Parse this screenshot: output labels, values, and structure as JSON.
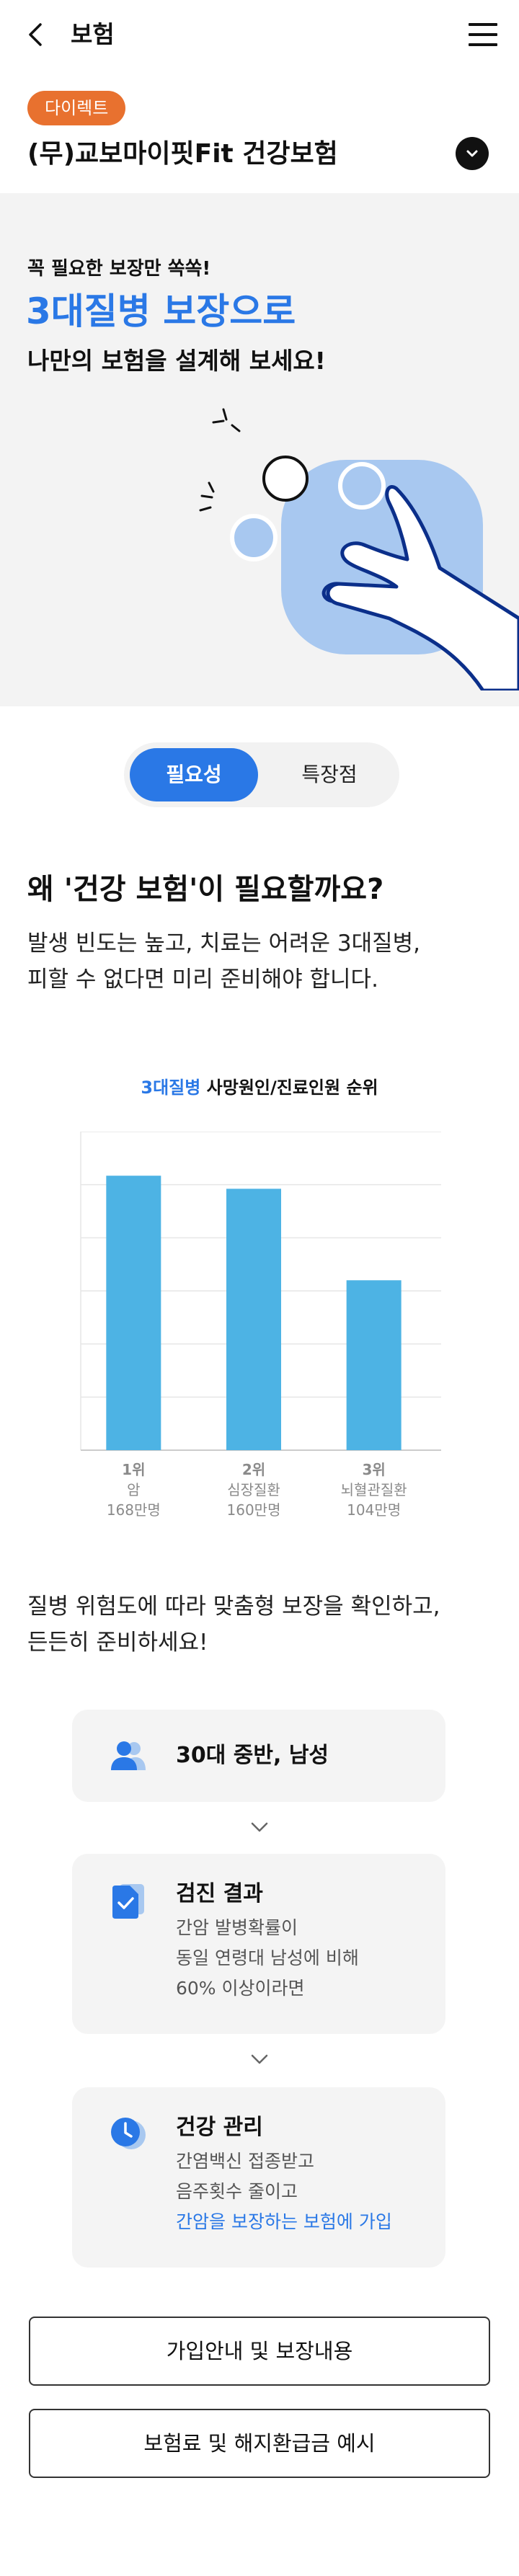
{
  "header": {
    "title": "보험"
  },
  "product": {
    "badge": "다이렉트",
    "name": "(무)교보마이핏Fit 건강보험"
  },
  "hero": {
    "eyebrow": "꼭 필요한 보장만 쏙쏙!",
    "headline": "3대질병 보장으로",
    "sub": "나만의 보험을 설계해 보세요!"
  },
  "tabs": [
    {
      "label": "필요성",
      "active": true
    },
    {
      "label": "특장점",
      "active": false
    }
  ],
  "need": {
    "title": "왜 '건강 보험'이 필요할까요?",
    "desc_line1": "발생 빈도는 높고, 치료는 어려운 3대질병,",
    "desc_line2": "피할 수 없다면 미리 준비해야 합니다."
  },
  "chart_caption": {
    "accent": "3대질병",
    "rest": " 사망원인/진료인원 순위"
  },
  "chart_data": {
    "type": "bar",
    "title": "3대질병 사망원인/진료인원 순위",
    "categories": [
      "암",
      "심장질환",
      "뇌혈관질환"
    ],
    "ranks": [
      "1위",
      "2위",
      "3위"
    ],
    "counts": [
      "168만명",
      "160만명",
      "104만명"
    ],
    "values": [
      168,
      160,
      104
    ],
    "ylim": [
      0,
      195
    ],
    "grid": true,
    "bar_color": "#4db3e4"
  },
  "steps": {
    "desc_line1": "질병 위험도에 따라 맞춤형 보장을 확인하고,",
    "desc_line2": "든든히 준비하세요!",
    "cards": [
      {
        "icon": "person-icon",
        "title": "30대 중반, 남성",
        "lines": []
      },
      {
        "icon": "document-check-icon",
        "title": "검진 결과",
        "lines": [
          "간암 발병확률이",
          "동일 연령대 남성에 비해",
          "60% 이상이라면"
        ]
      },
      {
        "icon": "clock-icon",
        "title": "건강 관리",
        "lines": [
          "간염백신 접종받고",
          "음주횟수 줄이고"
        ],
        "link": "간암을 보장하는 보험에 가입"
      }
    ]
  },
  "buttons": {
    "guide": "가입안내 및 보장내용",
    "refund": "보험료 및 해지환급금 예시"
  },
  "colors": {
    "accent": "#2a78e6",
    "badge": "#e8712f",
    "bar": "#4db3e4"
  }
}
